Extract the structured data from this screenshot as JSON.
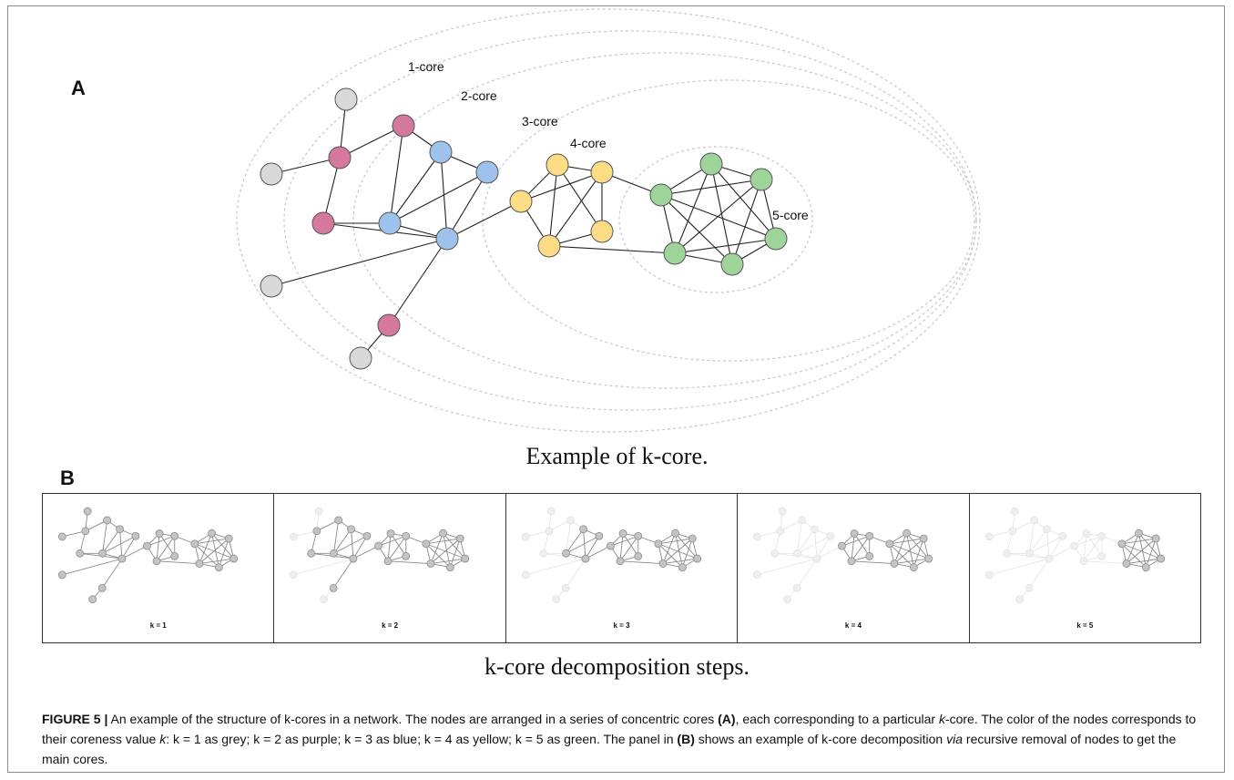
{
  "panel_a": {
    "label": "A",
    "caption": "Example of k-core.",
    "core_labels": [
      "1-core",
      "2-core",
      "3-core",
      "4-core",
      "5-core"
    ],
    "colors": {
      "grey": "#d9d9d9",
      "purple": "#d4789d",
      "blue": "#9fc2ec",
      "yellow": "#fddc86",
      "green": "#9ed39a",
      "edge": "#222222",
      "ring": "#c8c8c8"
    },
    "nodes": [
      {
        "id": "g1",
        "core": 1
      },
      {
        "id": "g2",
        "core": 1
      },
      {
        "id": "g3",
        "core": 1
      },
      {
        "id": "g4",
        "core": 1
      },
      {
        "id": "p1",
        "core": 2
      },
      {
        "id": "p2",
        "core": 2
      },
      {
        "id": "p3",
        "core": 2
      },
      {
        "id": "p4",
        "core": 2
      },
      {
        "id": "b1",
        "core": 3
      },
      {
        "id": "b2",
        "core": 3
      },
      {
        "id": "b3",
        "core": 3
      },
      {
        "id": "b4",
        "core": 3
      },
      {
        "id": "y1",
        "core": 4
      },
      {
        "id": "y2",
        "core": 4
      },
      {
        "id": "y3",
        "core": 4
      },
      {
        "id": "y4",
        "core": 4
      },
      {
        "id": "y5",
        "core": 4
      },
      {
        "id": "gr1",
        "core": 5
      },
      {
        "id": "gr2",
        "core": 5
      },
      {
        "id": "gr3",
        "core": 5
      },
      {
        "id": "gr4",
        "core": 5
      },
      {
        "id": "gr5",
        "core": 5
      },
      {
        "id": "gr6",
        "core": 5
      }
    ],
    "edges": [
      [
        "g1",
        "p1"
      ],
      [
        "g2",
        "p1"
      ],
      [
        "p1",
        "p2"
      ],
      [
        "p1",
        "p3"
      ],
      [
        "p2",
        "b1"
      ],
      [
        "p2",
        "b3"
      ],
      [
        "p3",
        "b3"
      ],
      [
        "p3",
        "b4"
      ],
      [
        "b1",
        "b2"
      ],
      [
        "b1",
        "b3"
      ],
      [
        "b1",
        "b4"
      ],
      [
        "b2",
        "b3"
      ],
      [
        "b2",
        "b4"
      ],
      [
        "b3",
        "b4"
      ],
      [
        "g3",
        "b4"
      ],
      [
        "b4",
        "p4"
      ],
      [
        "p4",
        "g4"
      ],
      [
        "b4",
        "y3"
      ],
      [
        "y1",
        "y2"
      ],
      [
        "y1",
        "y3"
      ],
      [
        "y1",
        "y4"
      ],
      [
        "y1",
        "y5"
      ],
      [
        "y2",
        "y3"
      ],
      [
        "y2",
        "y4"
      ],
      [
        "y2",
        "y5"
      ],
      [
        "y3",
        "y4"
      ],
      [
        "y4",
        "y5"
      ],
      [
        "y2",
        "gr1"
      ],
      [
        "y4",
        "gr4"
      ],
      [
        "gr1",
        "gr2"
      ],
      [
        "gr1",
        "gr3"
      ],
      [
        "gr1",
        "gr4"
      ],
      [
        "gr1",
        "gr5"
      ],
      [
        "gr1",
        "gr6"
      ],
      [
        "gr2",
        "gr3"
      ],
      [
        "gr2",
        "gr4"
      ],
      [
        "gr2",
        "gr5"
      ],
      [
        "gr3",
        "gr4"
      ],
      [
        "gr3",
        "gr5"
      ],
      [
        "gr3",
        "gr6"
      ],
      [
        "gr4",
        "gr5"
      ],
      [
        "gr4",
        "gr6"
      ],
      [
        "gr5",
        "gr6"
      ],
      [
        "gr2",
        "gr6"
      ]
    ]
  },
  "panel_b": {
    "label": "B",
    "caption": "k-core decomposition steps.",
    "steps": [
      {
        "label": "k = 1",
        "k": 1
      },
      {
        "label": "k = 2",
        "k": 2
      },
      {
        "label": "k = 3",
        "k": 3
      },
      {
        "label": "k = 4",
        "k": 4
      },
      {
        "label": "k = 5",
        "k": 5
      }
    ]
  },
  "caption": {
    "figure_number": "FIGURE 5 |",
    "text_1": " An example of the structure of k-cores in a network. The nodes are arranged in a series of concentric cores ",
    "ref_a": "(A)",
    "text_2": ", each corresponding to a particular ",
    "k_italic": "k",
    "text_3": "-core. The color of the nodes corresponds to their coreness value ",
    "k_italic_2": "k",
    "text_4": ": k = 1 as grey; k = 2 as purple; k = 3 as blue; k = 4 as yellow; k = 5 as green. The panel in ",
    "ref_b": "(B)",
    "text_5": " shows an example of k-core decomposition ",
    "via": "via",
    "text_6": " recursive removal of nodes to get the main cores."
  }
}
